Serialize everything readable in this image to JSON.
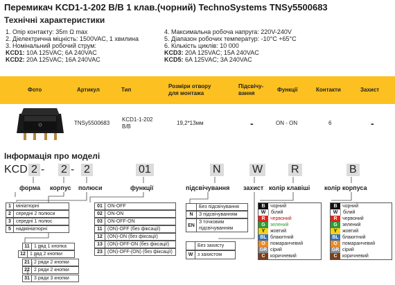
{
  "title": "Перемикач KCD1-1-202 B/B 1 клав.(чорний) TechnoSystems TNSy5500683",
  "subtitle": "Технічні характеристики",
  "specs_left": [
    "1. Опір контакту: 35m Ω  max",
    "2. Діелектрична міцність:  1500VAC, 1 хвилина",
    "3. Номінальний робочий струм:"
  ],
  "specs_left_kcd": [
    {
      "model": "KCD1:",
      "value": " 10A 125VAC; 6A 240VAC"
    },
    {
      "model": "KCD2:",
      "value": " 20A 125VAC; 16A 240VAC"
    }
  ],
  "specs_right": [
    "4. Максимальна робоча напруга: 220V-240V",
    "5. Діапазон робочих температур: -10°C +65°C",
    "6. Кількість циклів: 10 000"
  ],
  "specs_right_kcd": [
    {
      "model": "KCD3:",
      "value": " 20A 125VAC; 15A 240VAC"
    },
    {
      "model": "KCD5:",
      "value": " 6A 125VAC; 3A 240VAC"
    }
  ],
  "table": {
    "headers": [
      "Фото",
      "Артикул",
      "Тип",
      "Розміри отвору для монтажа",
      "Підсвічу-вання",
      "Функції",
      "Контакти",
      "Захист"
    ],
    "row": {
      "article": "TNSy5500683",
      "type": "KCD1-1-202 B/B",
      "size": "19,2*13мм",
      "backlight": "-",
      "function": "ON - ON",
      "contacts": "6",
      "protection": "-"
    }
  },
  "info": {
    "heading": "Інформація про моделі",
    "code": {
      "prefix": "KCD",
      "p1": "2",
      "p2": "2",
      "p3": "2",
      "p4": "01",
      "p5": "N",
      "p6": "W",
      "p7": "R",
      "p8": "B",
      "dash": "-"
    },
    "labels": {
      "form": "форма",
      "body": "корпус",
      "poles": "полюси",
      "functions": "функції",
      "backlight": "підсвічування",
      "protection": "захист",
      "key_color": "колір клавіші",
      "body_color": "колір корпуса"
    },
    "form_list": [
      {
        "k": "1",
        "v": "мініатюрні"
      },
      {
        "k": "2",
        "v": "середні 2 полюси"
      },
      {
        "k": "3",
        "v": "середні 1 полюс"
      },
      {
        "k": "5",
        "v": "надмініатюрні"
      }
    ],
    "function_list": [
      {
        "k": "01",
        "v": "ON-OFF"
      },
      {
        "k": "02",
        "v": "ON-ON"
      },
      {
        "k": "03",
        "v": "ON-OFF-ON"
      },
      {
        "k": "11",
        "v": "(ON)-OFF (без фіксації)"
      },
      {
        "k": "12",
        "v": "(ON)-ON (без фіксації)"
      },
      {
        "k": "13",
        "v": "(ON)-OFF-ON (без фіксації)"
      },
      {
        "k": "23",
        "v": "(ON)-OFF-(ON) (без фіксації)"
      }
    ],
    "backlight_list": [
      {
        "k": "",
        "v": "Без підсвічування"
      },
      {
        "k": "N",
        "v": "З підсвічуванням"
      },
      {
        "k": "EN",
        "v": "З точковим підсвічуванням"
      }
    ],
    "protection_list": [
      {
        "k": "",
        "v": "Без захисту"
      },
      {
        "k": "W",
        "v": "з захистом"
      }
    ],
    "body_list": [
      {
        "k": "11",
        "v": "1 ряд 1 кнопка"
      },
      {
        "k": "12",
        "v": "1 ряд 2 кнопки"
      },
      {
        "k": "21",
        "v": "2 ряди 2 кнопки"
      },
      {
        "k": "22",
        "v": "2 ряди 2 кнопки"
      },
      {
        "k": "3",
        "v": "3 ряди 3 кнопки"
      },
      {
        "k": "31",
        "v": "3 ряди 3 кнопки"
      }
    ],
    "key_colors": [
      {
        "k": "B",
        "v": "чорний",
        "bg": "#111111",
        "text": "#111111"
      },
      {
        "k": "W",
        "v": "білий",
        "bg": "#ffffff",
        "text": "#111111"
      },
      {
        "k": "R",
        "v": "червоний",
        "bg": "#e0261c",
        "text": "#c0130b"
      },
      {
        "k": "G",
        "v": "зелений",
        "bg": "#2e9a36",
        "text": "#2e9a36"
      },
      {
        "k": "Y",
        "v": "жовтий",
        "bg": "#f2d21b",
        "text": "#111111"
      },
      {
        "k": "BL",
        "v": "блакитний",
        "bg": "#2f72c4",
        "text": "#111111"
      },
      {
        "k": "O",
        "v": "помаранчевий",
        "bg": "#f08a1c",
        "text": "#111111"
      },
      {
        "k": "GR",
        "v": "сірий",
        "bg": "#8c8c8c",
        "text": "#111111"
      },
      {
        "k": "C",
        "v": "коричневий",
        "bg": "#7a3f1a",
        "text": "#111111"
      }
    ],
    "body_colors": [
      {
        "k": "B",
        "v": "чорний",
        "bg": "#111111"
      },
      {
        "k": "W",
        "v": "білий",
        "bg": "#ffffff"
      },
      {
        "k": "R",
        "v": "червоний",
        "bg": "#e0261c"
      },
      {
        "k": "G",
        "v": "зелений",
        "bg": "#2e9a36"
      },
      {
        "k": "Y",
        "v": "жовтий",
        "bg": "#f2d21b"
      },
      {
        "k": "BL",
        "v": "блакитний",
        "bg": "#2f72c4"
      },
      {
        "k": "O",
        "v": "помаранчевий",
        "bg": "#f08a1c"
      },
      {
        "k": "GR",
        "v": "сірий",
        "bg": "#8c8c8c"
      },
      {
        "k": "C",
        "v": "коричневий",
        "bg": "#7a3f1a"
      }
    ]
  },
  "colors": {
    "accent": "#fcc020",
    "text": "#222222"
  }
}
